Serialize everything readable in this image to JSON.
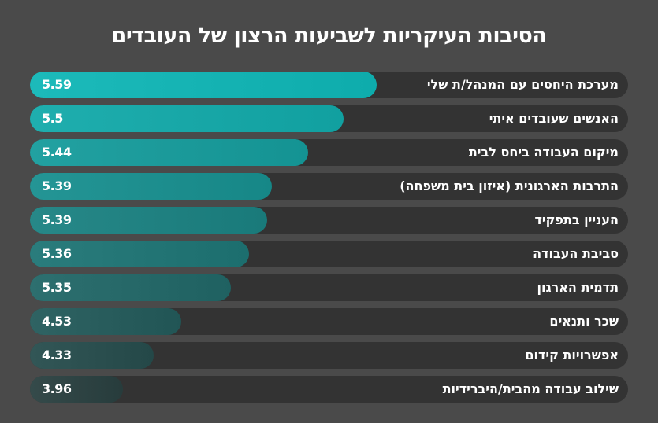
{
  "chart_data": {
    "type": "bar",
    "orientation": "horizontal",
    "title": "הסיבות העיקריות לשביעות הרצון של העובדים",
    "categories": [
      "מערכת היחסים עם המנהל/ת שלי",
      "האנשים שעובדים איתי",
      "מיקום העבודה ביחס לבית",
      "התרבות הארגונית (איזון בית משפחה)",
      "העניין בתפקיד",
      "סביבת העבודה",
      "תדמית הארגון",
      "שכר ותנאים",
      "אפשרויות קידום",
      "שילוב עבודה מהבית/היברידיות"
    ],
    "values": [
      "5.59",
      "5.5",
      "5.44",
      "5.39",
      "5.39",
      "5.36",
      "5.35",
      "4.53",
      "4.33",
      "3.96"
    ],
    "fill_fraction": [
      0.58,
      0.525,
      0.465,
      0.405,
      0.397,
      0.366,
      0.336,
      0.253,
      0.207,
      0.155
    ],
    "colors": {
      "top": "#16b4b4",
      "bottom": "#2f4444",
      "track": "#333333",
      "background": "#4a4a4a"
    },
    "grid": false,
    "legend": "none"
  }
}
